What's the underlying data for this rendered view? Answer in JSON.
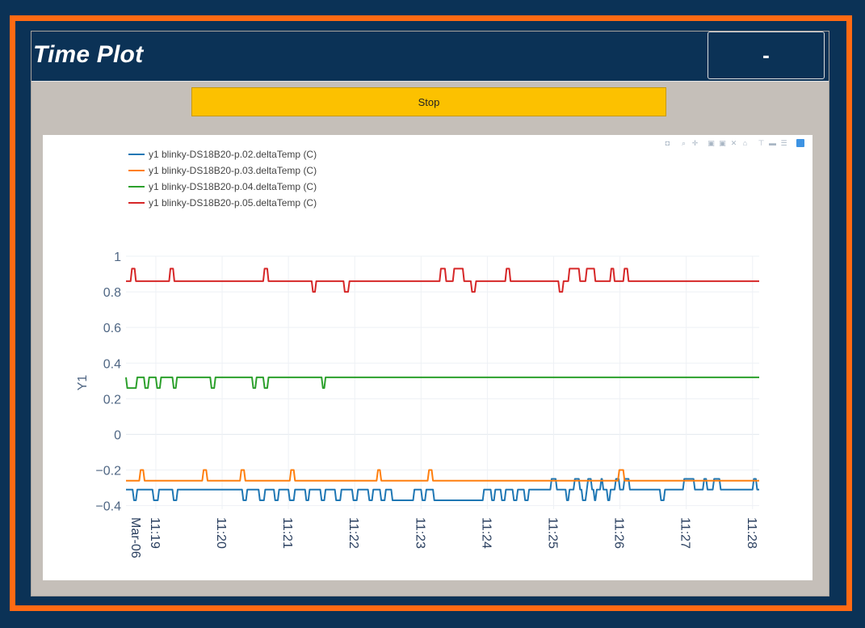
{
  "header": {
    "title": "Time Plot",
    "status": "-"
  },
  "controls": {
    "stop_label": "Stop"
  },
  "colors": {
    "accent_border": "#ff6a13",
    "header_bg": "#0b3256",
    "button": "#fcc100"
  },
  "modebar": {
    "icons": [
      "camera-icon",
      "zoom-icon",
      "pan-icon",
      "zoom-in-icon",
      "zoom-out-icon",
      "autoscale-icon",
      "home-icon",
      "spike-lines-icon",
      "hover-closest-icon",
      "hover-compare-icon",
      "plotly-logo-icon"
    ]
  },
  "chart_data": {
    "type": "line",
    "ylabel": "Y1",
    "xlabel": "",
    "ylim": [
      -0.42,
      1.0
    ],
    "y_ticks": [
      {
        "v": 1,
        "label": "1"
      },
      {
        "v": 0.8,
        "label": "0.8"
      },
      {
        "v": 0.6,
        "label": "0.6"
      },
      {
        "v": 0.4,
        "label": "0.4"
      },
      {
        "v": 0.2,
        "label": "0.2"
      },
      {
        "v": 0,
        "label": "0"
      },
      {
        "v": -0.2,
        "label": "−0.2"
      },
      {
        "v": -0.4,
        "label": "−0.4"
      }
    ],
    "xlim_min": [
      18.55,
      28.1
    ],
    "x_ticks": [
      {
        "v": 19,
        "label": "11:19",
        "sub": "Mar-06"
      },
      {
        "v": 20,
        "label": "11:20"
      },
      {
        "v": 21,
        "label": "11:21"
      },
      {
        "v": 22,
        "label": "11:22"
      },
      {
        "v": 23,
        "label": "11:23"
      },
      {
        "v": 24,
        "label": "11:24"
      },
      {
        "v": 25,
        "label": "11:25"
      },
      {
        "v": 26,
        "label": "11:26"
      },
      {
        "v": 27,
        "label": "11:27"
      },
      {
        "v": 28,
        "label": "11:28"
      }
    ],
    "grid": true,
    "legend_position": "top-left",
    "series": [
      {
        "name": "y1 blinky-DS18B20-p.02.deltaTemp (C)",
        "color": "#1f77b4",
        "base": -0.31,
        "pulse_value": -0.37,
        "pulses": [
          [
            18.65,
            18.72
          ],
          [
            18.95,
            19.05
          ],
          [
            19.25,
            19.33
          ],
          [
            20.3,
            20.38
          ],
          [
            20.55,
            20.65
          ],
          [
            20.78,
            20.86
          ],
          [
            21.0,
            21.1
          ],
          [
            21.25,
            21.32
          ],
          [
            21.48,
            21.56
          ],
          [
            21.7,
            21.8
          ],
          [
            21.96,
            22.05
          ],
          [
            22.2,
            22.28
          ],
          [
            22.38,
            22.47
          ],
          [
            22.55,
            22.9
          ],
          [
            23.0,
            23.08
          ],
          [
            23.18,
            23.95
          ],
          [
            24.05,
            24.12
          ],
          [
            24.2,
            24.28
          ],
          [
            24.38,
            24.46
          ],
          [
            24.55,
            24.63
          ],
          [
            25.18,
            25.24
          ],
          [
            25.42,
            25.5
          ],
          [
            25.6,
            25.65
          ],
          [
            25.8,
            25.86
          ],
          [
            26.6,
            26.68
          ]
        ],
        "high_value": -0.25,
        "highs": [
          [
            24.95,
            25.05
          ],
          [
            25.3,
            25.4
          ],
          [
            25.5,
            25.58
          ],
          [
            25.7,
            25.75
          ],
          [
            25.92,
            26.0
          ],
          [
            26.05,
            26.15
          ],
          [
            26.95,
            27.13
          ],
          [
            27.25,
            27.32
          ],
          [
            27.4,
            27.52
          ],
          [
            28.0,
            28.07
          ]
        ]
      },
      {
        "name": "y1 blinky-DS18B20-p.03.deltaTemp (C)",
        "color": "#ff7f0e",
        "base": -0.26,
        "pulse_value": -0.2,
        "pulses": [
          [
            18.75,
            18.83
          ],
          [
            19.7,
            19.78
          ],
          [
            20.27,
            20.35
          ],
          [
            21.02,
            21.1
          ],
          [
            22.33,
            22.4
          ],
          [
            23.1,
            23.18
          ],
          [
            25.97,
            26.07
          ]
        ],
        "high_value": -0.26,
        "highs": []
      },
      {
        "name": "y1 blinky-DS18B20-p.04.deltaTemp (C)",
        "color": "#2ca02c",
        "base": 0.32,
        "pulse_value": 0.26,
        "pulses": [
          [
            18.55,
            18.72
          ],
          [
            18.82,
            18.9
          ],
          [
            19.0,
            19.08
          ],
          [
            19.25,
            19.32
          ],
          [
            19.82,
            19.9
          ],
          [
            20.45,
            20.52
          ],
          [
            20.62,
            20.7
          ],
          [
            21.5,
            21.56
          ]
        ],
        "high_value": 0.32,
        "highs": []
      },
      {
        "name": "y1 blinky-DS18B20-p.05.deltaTemp (C)",
        "color": "#d62728",
        "base": 0.86,
        "pulse_value": 0.93,
        "pulses": [
          [
            18.62,
            18.7
          ],
          [
            19.2,
            19.28
          ],
          [
            20.62,
            20.7
          ],
          [
            23.28,
            23.38
          ],
          [
            23.48,
            23.65
          ],
          [
            24.27,
            24.35
          ],
          [
            25.22,
            25.4
          ],
          [
            25.48,
            25.63
          ],
          [
            25.85,
            25.92
          ],
          [
            26.05,
            26.13
          ]
        ],
        "high_value": 0.86,
        "highs": [],
        "low_value": 0.8,
        "lows": [
          [
            21.35,
            21.42
          ],
          [
            21.83,
            21.92
          ],
          [
            23.75,
            23.83
          ],
          [
            25.07,
            25.15
          ]
        ]
      }
    ]
  }
}
